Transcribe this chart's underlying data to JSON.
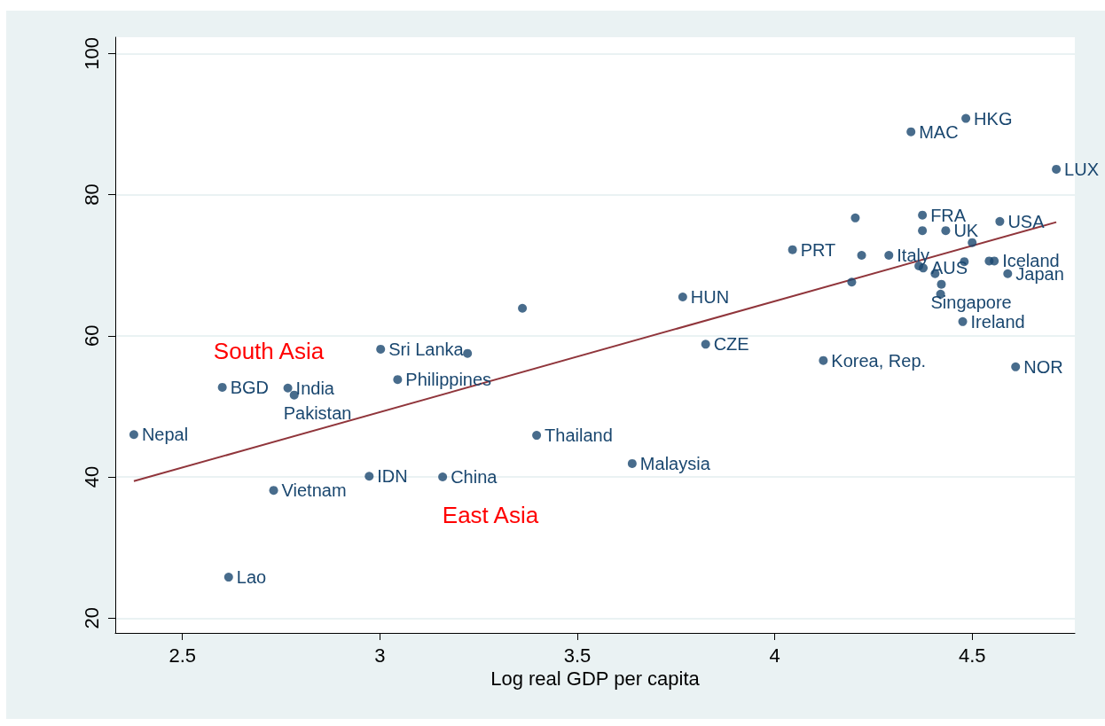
{
  "chart_data": {
    "type": "scatter",
    "xlabel": "Log real GDP per capita",
    "xlim": [
      2.33,
      4.76
    ],
    "xticks": [
      2.5,
      3,
      3.5,
      4,
      4.5
    ],
    "ylim": [
      17.9,
      102.3
    ],
    "yticks": [
      20,
      40,
      60,
      80,
      100
    ],
    "grid": "y",
    "series": [
      {
        "color": "#1a476f",
        "marker": "circle",
        "x": [
          2.377,
          2.601,
          2.767,
          2.783,
          3.002,
          3.222,
          3.045,
          2.731,
          2.617,
          2.973,
          3.159,
          3.397,
          3.639,
          3.361,
          3.767,
          3.825,
          4.123,
          4.045,
          4.204,
          4.374,
          4.374,
          4.433,
          4.22,
          4.289,
          4.195,
          4.5,
          4.365,
          4.376,
          4.48,
          4.543,
          4.556,
          4.406,
          4.59,
          4.422,
          4.42,
          4.476,
          4.61,
          4.57,
          4.345,
          4.484,
          4.713
        ],
        "values": [
          46.0,
          52.7,
          52.6,
          51.6,
          58.1,
          57.5,
          53.8,
          38.1,
          25.8,
          40.1,
          40.0,
          45.9,
          41.9,
          63.9,
          65.5,
          58.8,
          56.5,
          72.2,
          76.7,
          77.1,
          74.9,
          74.9,
          71.4,
          71.4,
          67.6,
          73.2,
          69.9,
          69.6,
          70.5,
          70.6,
          70.6,
          68.8,
          68.8,
          67.3,
          65.9,
          62.0,
          55.6,
          76.2,
          88.9,
          90.8,
          83.6
        ]
      },
      {
        "type": "line",
        "color": "#90353b",
        "marker": "none",
        "line_style": "solid",
        "x": [
          2.377,
          4.713
        ],
        "values": [
          39.4,
          76.1
        ]
      }
    ],
    "annotations": [
      {
        "text": "Nepal",
        "x": 2.377,
        "y": 46.0
      },
      {
        "text": "BGD",
        "x": 2.601,
        "y": 52.7
      },
      {
        "text": "India",
        "x": 2.767,
        "y": 52.6
      },
      {
        "text": "Pakistan",
        "x": 2.783,
        "y": 51.6
      },
      {
        "text": "Sri Lanka",
        "x": 3.002,
        "y": 58.1
      },
      {
        "text": "Philippines",
        "x": 3.045,
        "y": 53.8
      },
      {
        "text": "Vietnam",
        "x": 2.731,
        "y": 38.1
      },
      {
        "text": "Lao",
        "x": 2.617,
        "y": 25.8
      },
      {
        "text": "IDN",
        "x": 2.973,
        "y": 40.1
      },
      {
        "text": "China",
        "x": 3.159,
        "y": 40.0
      },
      {
        "text": "Thailand",
        "x": 3.397,
        "y": 45.9
      },
      {
        "text": "Malaysia",
        "x": 3.639,
        "y": 41.9
      },
      {
        "text": "HUN",
        "x": 3.767,
        "y": 65.5
      },
      {
        "text": "CZE",
        "x": 3.825,
        "y": 58.8
      },
      {
        "text": "Korea, Rep.",
        "x": 4.123,
        "y": 56.5
      },
      {
        "text": "PRT",
        "x": 4.045,
        "y": 72.2
      },
      {
        "text": "FRA",
        "x": 4.374,
        "y": 77.1
      },
      {
        "text": "UK",
        "x": 4.433,
        "y": 74.9
      },
      {
        "text": "Italy",
        "x": 4.289,
        "y": 71.4
      },
      {
        "text": "AUS",
        "x": 4.376,
        "y": 69.6
      },
      {
        "text": "Iceland",
        "x": 4.556,
        "y": 70.6
      },
      {
        "text": "Japan",
        "x": 4.59,
        "y": 68.8
      },
      {
        "text": "Singapore",
        "x": 4.422,
        "y": 67.3
      },
      {
        "text": "Ireland",
        "x": 4.476,
        "y": 62.0
      },
      {
        "text": "NOR",
        "x": 4.61,
        "y": 55.6
      },
      {
        "text": "USA",
        "x": 4.57,
        "y": 76.2
      },
      {
        "text": "MAC",
        "x": 4.345,
        "y": 88.9
      },
      {
        "text": "HKG",
        "x": 4.484,
        "y": 90.8
      },
      {
        "text": "LUX",
        "x": 4.713,
        "y": 83.6
      },
      "South Asia",
      "East Asia"
    ]
  }
}
